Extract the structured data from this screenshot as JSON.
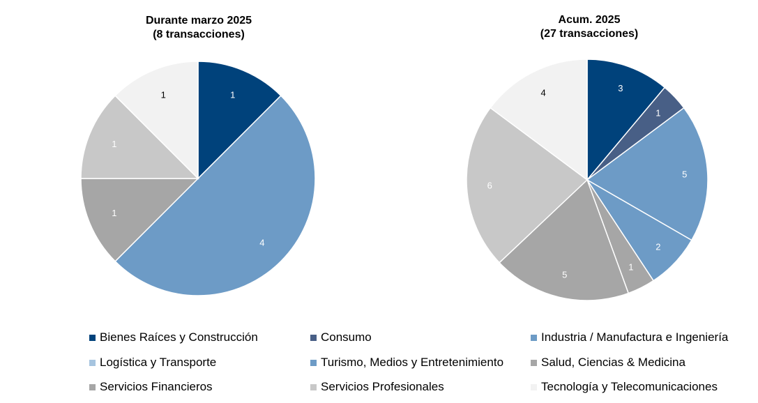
{
  "chart_data": [
    {
      "type": "pie",
      "title": "Durante marzo 2025",
      "subtitle": "(8 transacciones)",
      "slices": [
        {
          "category": "Bienes Raíces y Construcción",
          "value": 1
        },
        {
          "category": "Industria / Manufactura e Ingeniería",
          "value": 4
        },
        {
          "category": "Servicios Financieros",
          "value": 1
        },
        {
          "category": "Servicios Profesionales",
          "value": 1
        },
        {
          "category": "Tecnología y Telecomunicaciones",
          "value": 1
        }
      ]
    },
    {
      "type": "pie",
      "title": "Acum. 2025",
      "subtitle": "(27 transacciones)",
      "slices": [
        {
          "category": "Bienes Raíces y Construcción",
          "value": 3
        },
        {
          "category": "Consumo",
          "value": 1
        },
        {
          "category": "Industria / Manufactura e Ingeniería",
          "value": 5
        },
        {
          "category": "Turismo, Medios y Entretenimiento",
          "value": 2
        },
        {
          "category": "Salud, Ciencias & Medicina",
          "value": 1
        },
        {
          "category": "Servicios Financieros",
          "value": 5
        },
        {
          "category": "Servicios Profesionales",
          "value": 6
        },
        {
          "category": "Tecnología y Telecomunicaciones",
          "value": 4
        }
      ]
    }
  ],
  "legend": {
    "placement": "bottom",
    "items": [
      {
        "label": "Bienes Raíces y Construcción",
        "color": "#00427b"
      },
      {
        "label": "Consumo",
        "color": "#485f86"
      },
      {
        "label": "Industria / Manufactura e Ingeniería",
        "color": "#6d9bc6"
      },
      {
        "label": "Logística y Transporte",
        "color": "#a6c4df"
      },
      {
        "label": "Turismo, Medios y Entretenimiento",
        "color": "#6d9bc6"
      },
      {
        "label": "Salud, Ciencias & Medicina",
        "color": "#a6a6a6"
      },
      {
        "label": "Servicios Financieros",
        "color": "#a6a6a6"
      },
      {
        "label": "Servicios Profesionales",
        "color": "#c8c8c8"
      },
      {
        "label": "Tecnología y Telecomunicaciones",
        "color": "#f2f2f2"
      }
    ]
  },
  "label_colors": {
    "Bienes Raíces y Construcción": "#ffffff",
    "Consumo": "#ffffff",
    "Industria / Manufactura e Ingeniería": "#ffffff",
    "Turismo, Medios y Entretenimiento": "#ffffff",
    "Salud, Ciencias & Medicina": "#ffffff",
    "Servicios Financieros": "#ffffff",
    "Servicios Profesionales": "#ffffff",
    "Tecnología y Telecomunicaciones": "#000000"
  }
}
